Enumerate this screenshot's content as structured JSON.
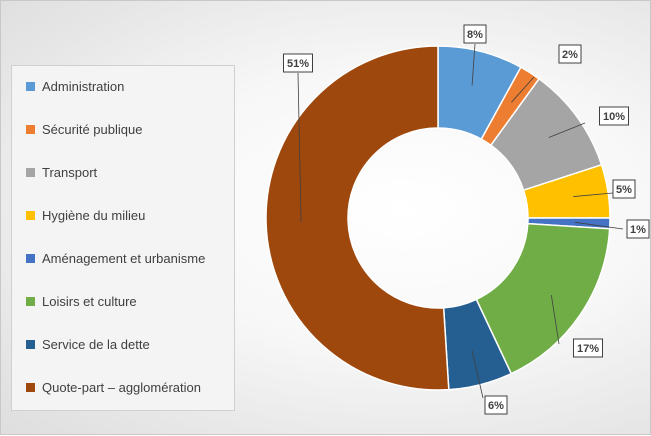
{
  "chart_data": {
    "type": "pie",
    "donut": true,
    "legend_position": "left",
    "labels": [
      "Administration",
      "Sécurité publique",
      "Transport",
      "Hygiène du milieu",
      "Aménagement et urbanisme",
      "Loisirs et culture",
      "Service de la dette",
      "Quote-part – agglomération"
    ],
    "values": [
      8,
      2,
      10,
      5,
      1,
      17,
      6,
      51
    ],
    "data_labels": [
      "8%",
      "2%",
      "10%",
      "5%",
      "1%",
      "17%",
      "6%",
      "51%"
    ],
    "colors": [
      "#5b9bd5",
      "#ed7d31",
      "#a5a5a5",
      "#ffc000",
      "#4472c4",
      "#70ad47",
      "#255e91",
      "#9e480e"
    ]
  }
}
